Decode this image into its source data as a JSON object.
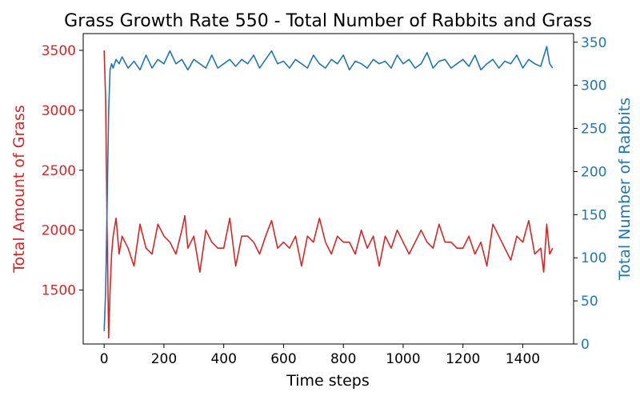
{
  "chart_data": {
    "type": "line",
    "title": "Grass Growth Rate 550 - Total Number of Rabbits and Grass",
    "xlabel": "Time steps",
    "xlim": [
      -70,
      1570
    ],
    "xticks": [
      0,
      200,
      400,
      600,
      800,
      1000,
      1200,
      1400
    ],
    "left_axis": {
      "label": "Total Amount of Grass",
      "color": "#d62728",
      "ylim": [
        1050,
        3640
      ],
      "ticks": [
        1500,
        2000,
        2500,
        3000,
        3500
      ]
    },
    "right_axis": {
      "label": "Total Number of Rabbits",
      "color": "#1f77b4",
      "ylim": [
        0,
        360
      ],
      "ticks": [
        0,
        50,
        100,
        150,
        200,
        250,
        300,
        350
      ]
    },
    "series": [
      {
        "axis": "left",
        "color": "#d62728",
        "x": [
          0,
          5,
          10,
          15,
          20,
          25,
          30,
          40,
          50,
          60,
          80,
          100,
          120,
          140,
          160,
          180,
          200,
          220,
          240,
          260,
          270,
          280,
          300,
          320,
          340,
          360,
          380,
          400,
          420,
          440,
          460,
          480,
          500,
          520,
          540,
          560,
          580,
          600,
          620,
          640,
          660,
          680,
          700,
          720,
          740,
          760,
          780,
          800,
          820,
          840,
          860,
          880,
          900,
          920,
          940,
          960,
          980,
          1000,
          1020,
          1040,
          1060,
          1080,
          1100,
          1120,
          1140,
          1160,
          1180,
          1200,
          1220,
          1240,
          1260,
          1280,
          1300,
          1320,
          1340,
          1360,
          1380,
          1400,
          1420,
          1440,
          1460,
          1470,
          1480,
          1490,
          1500
        ],
        "values": [
          3500,
          3100,
          2000,
          1100,
          1500,
          1800,
          1950,
          2100,
          1800,
          1950,
          1850,
          1700,
          2050,
          1850,
          1800,
          2050,
          1950,
          1900,
          1800,
          2000,
          2120,
          1850,
          1950,
          1650,
          2000,
          1900,
          1850,
          1850,
          2100,
          1700,
          1950,
          1950,
          1900,
          1800,
          1950,
          2080,
          1850,
          1900,
          1850,
          1950,
          1700,
          1950,
          1900,
          2100,
          1900,
          1800,
          1950,
          1900,
          1900,
          1800,
          2000,
          1850,
          1950,
          1700,
          1950,
          1850,
          2000,
          1900,
          1800,
          1900,
          2000,
          1900,
          1850,
          2050,
          1900,
          1900,
          1850,
          1850,
          1950,
          1800,
          1900,
          1700,
          2050,
          1950,
          1850,
          1750,
          1950,
          1900,
          2080,
          1800,
          1850,
          1650,
          2050,
          1800,
          1850
        ]
      },
      {
        "axis": "right",
        "color": "#1f77b4",
        "x": [
          0,
          5,
          10,
          15,
          20,
          25,
          30,
          40,
          50,
          60,
          80,
          100,
          120,
          140,
          160,
          180,
          200,
          220,
          240,
          260,
          280,
          300,
          320,
          340,
          360,
          380,
          400,
          420,
          440,
          460,
          480,
          500,
          520,
          540,
          560,
          580,
          600,
          620,
          640,
          660,
          680,
          700,
          720,
          740,
          760,
          780,
          800,
          820,
          840,
          860,
          880,
          900,
          920,
          940,
          960,
          980,
          1000,
          1020,
          1040,
          1060,
          1080,
          1100,
          1120,
          1140,
          1160,
          1180,
          1200,
          1220,
          1240,
          1260,
          1280,
          1300,
          1320,
          1340,
          1360,
          1380,
          1400,
          1420,
          1440,
          1460,
          1480,
          1490,
          1500
        ],
        "values": [
          15,
          60,
          160,
          270,
          318,
          325,
          320,
          330,
          325,
          333,
          320,
          328,
          318,
          335,
          320,
          330,
          325,
          340,
          325,
          330,
          318,
          330,
          325,
          320,
          335,
          320,
          325,
          330,
          322,
          330,
          325,
          335,
          320,
          330,
          340,
          325,
          328,
          320,
          330,
          325,
          320,
          335,
          325,
          320,
          330,
          325,
          335,
          318,
          328,
          325,
          320,
          330,
          325,
          328,
          320,
          335,
          325,
          330,
          320,
          325,
          338,
          320,
          328,
          330,
          320,
          325,
          330,
          322,
          335,
          318,
          325,
          330,
          320,
          328,
          325,
          335,
          320,
          330,
          325,
          322,
          345,
          325,
          320
        ]
      }
    ]
  }
}
